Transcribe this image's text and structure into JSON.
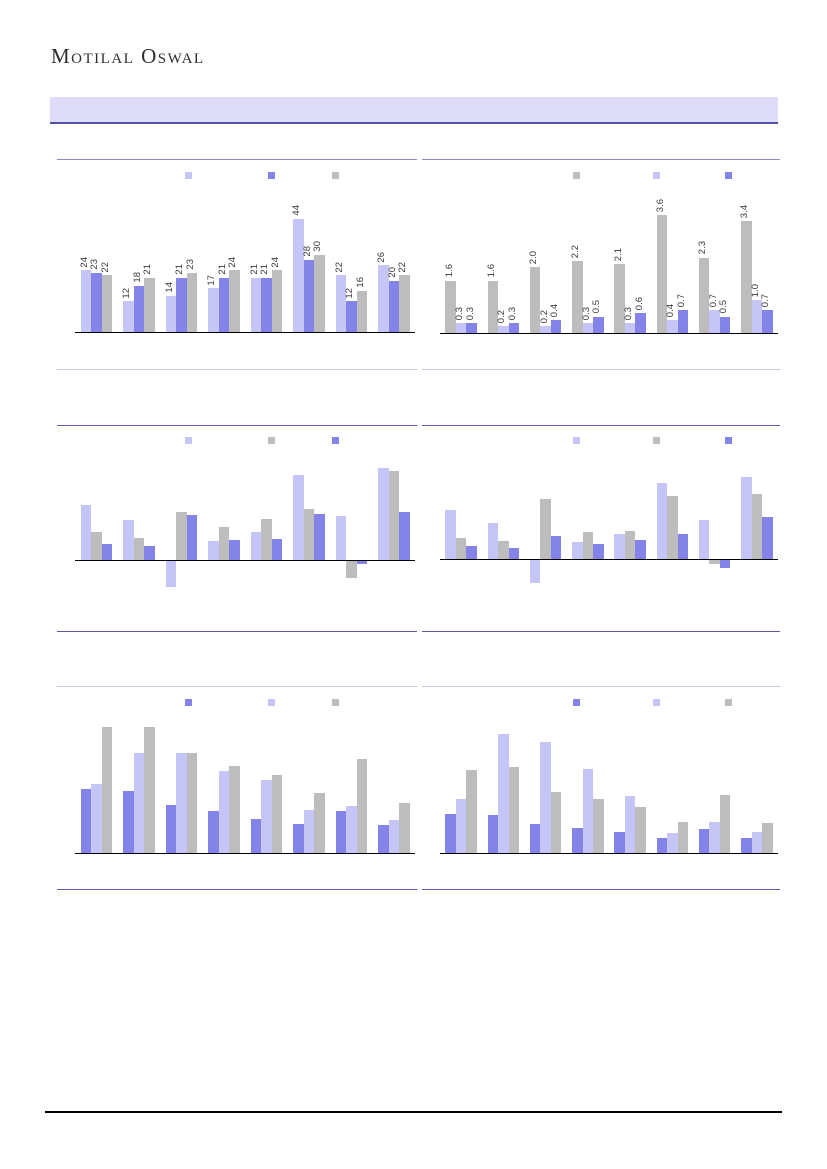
{
  "header": {
    "brand": "Motilal Oswal"
  },
  "banner": {
    "text": ""
  },
  "colors": {
    "lavender": "#c6c6f6",
    "blue": "#8383e8",
    "gray": "#bdbdbd",
    "banner_bg": "#dedcf8",
    "banner_border": "#5452a8",
    "axis": "#000000",
    "label_text": "#3a3a3a",
    "line_light": "#c9c8ec",
    "line_medium": "#8d8bc6",
    "line_dark": "#5c5aad",
    "footer_rule": "#000000"
  },
  "chart_data": [
    {
      "id": "top-left",
      "type": "bar",
      "legend_position": "top",
      "grid": false,
      "series": [
        {
          "name": "series-lavender",
          "color": "lavender"
        },
        {
          "name": "series-blue",
          "color": "blue"
        },
        {
          "name": "series-gray",
          "color": "gray"
        }
      ],
      "groups": [
        [
          24,
          23,
          22
        ],
        [
          12,
          18,
          21
        ],
        [
          14,
          21,
          23
        ],
        [
          17,
          21,
          24
        ],
        [
          21,
          21,
          24
        ],
        [
          44,
          28,
          30
        ],
        [
          22,
          12,
          16
        ],
        [
          26,
          20,
          22
        ]
      ],
      "show_value_labels": true,
      "value_decimals": 0,
      "ylim": [
        0,
        46
      ]
    },
    {
      "id": "top-right",
      "type": "bar",
      "legend_position": "top",
      "grid": false,
      "series": [
        {
          "name": "series-gray",
          "color": "gray"
        },
        {
          "name": "series-lavender",
          "color": "lavender"
        },
        {
          "name": "series-blue",
          "color": "blue"
        }
      ],
      "groups": [
        [
          1.6,
          0.3,
          0.3
        ],
        [
          1.6,
          0.2,
          0.3
        ],
        [
          2.0,
          0.2,
          0.4
        ],
        [
          2.2,
          0.3,
          0.5
        ],
        [
          2.1,
          0.3,
          0.6
        ],
        [
          3.6,
          0.4,
          0.7
        ],
        [
          2.3,
          0.7,
          0.5
        ],
        [
          3.4,
          1.0,
          0.7
        ]
      ],
      "show_value_labels": true,
      "value_decimals": 1,
      "ylim": [
        0,
        3.8
      ]
    },
    {
      "id": "middle-left",
      "type": "bar",
      "legend_position": "top",
      "grid": false,
      "series": [
        {
          "name": "series-lavender",
          "color": "lavender"
        },
        {
          "name": "series-gray",
          "color": "gray"
        },
        {
          "name": "series-blue",
          "color": "blue"
        }
      ],
      "groups": [
        [
          5.5,
          2.8,
          1.6
        ],
        [
          4.0,
          2.2,
          1.4
        ],
        [
          -2.6,
          4.8,
          4.5
        ],
        [
          1.9,
          3.3,
          2.0
        ],
        [
          2.8,
          4.1,
          2.1
        ],
        [
          8.5,
          5.1,
          4.6
        ],
        [
          4.4,
          -1.7,
          -0.3
        ],
        [
          9.2,
          8.9,
          4.8
        ]
      ],
      "show_value_labels": false,
      "value_decimals": 1,
      "ylim": [
        -3,
        10
      ]
    },
    {
      "id": "middle-right",
      "type": "bar",
      "legend_position": "top",
      "grid": false,
      "series": [
        {
          "name": "series-lavender",
          "color": "lavender"
        },
        {
          "name": "series-gray",
          "color": "gray"
        },
        {
          "name": "series-blue",
          "color": "blue"
        }
      ],
      "groups": [
        [
          4.9,
          2.1,
          1.3
        ],
        [
          3.6,
          1.8,
          1.1
        ],
        [
          -2.3,
          6.0,
          2.3
        ],
        [
          1.7,
          2.7,
          1.5
        ],
        [
          2.5,
          2.8,
          1.9
        ],
        [
          7.6,
          6.3,
          2.5
        ],
        [
          3.9,
          -0.4,
          -0.8
        ],
        [
          8.2,
          6.5,
          4.2
        ]
      ],
      "show_value_labels": false,
      "value_decimals": 1,
      "ylim": [
        -3,
        10
      ]
    },
    {
      "id": "bottom-left",
      "type": "bar",
      "legend_position": "top",
      "grid": false,
      "series": [
        {
          "name": "series-blue",
          "color": "blue"
        },
        {
          "name": "series-lavender",
          "color": "lavender"
        },
        {
          "name": "series-gray",
          "color": "gray"
        }
      ],
      "groups": [
        [
          5.1,
          5.5,
          10.0
        ],
        [
          4.9,
          7.9,
          10.0
        ],
        [
          3.8,
          7.9,
          7.9
        ],
        [
          3.3,
          6.5,
          6.9
        ],
        [
          2.7,
          5.8,
          6.2
        ],
        [
          2.3,
          3.4,
          4.8
        ],
        [
          3.3,
          3.7,
          7.5
        ],
        [
          2.2,
          2.6,
          4.0
        ]
      ],
      "show_value_labels": false,
      "value_decimals": 1,
      "ylim": [
        0,
        11
      ]
    },
    {
      "id": "bottom-right",
      "type": "bar",
      "legend_position": "top",
      "grid": false,
      "series": [
        {
          "name": "series-blue",
          "color": "blue"
        },
        {
          "name": "series-lavender",
          "color": "lavender"
        },
        {
          "name": "series-gray",
          "color": "gray"
        }
      ],
      "groups": [
        [
          3.3,
          4.5,
          7.0
        ],
        [
          3.2,
          10.0,
          7.2
        ],
        [
          2.4,
          9.3,
          5.1
        ],
        [
          2.1,
          7.1,
          4.5
        ],
        [
          1.8,
          4.8,
          3.9
        ],
        [
          1.3,
          1.7,
          2.6
        ],
        [
          2.0,
          2.6,
          4.9
        ],
        [
          1.3,
          1.8,
          2.5
        ]
      ],
      "show_value_labels": false,
      "value_decimals": 1,
      "ylim": [
        0,
        11
      ]
    }
  ]
}
